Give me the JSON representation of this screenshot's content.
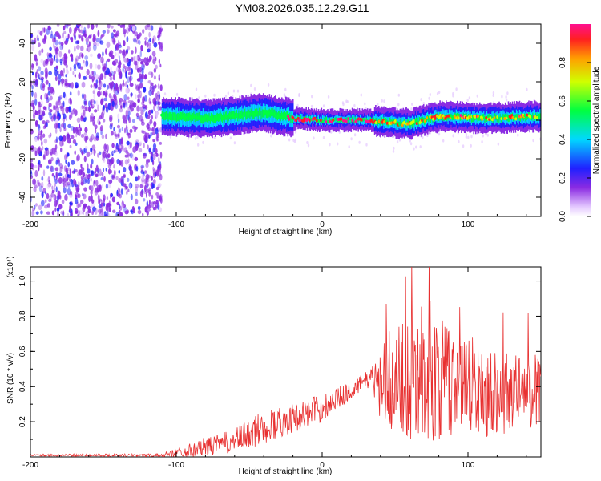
{
  "title": "YM08.2026.035.12.29.G11",
  "chart_data": [
    {
      "type": "heatmap",
      "title": "YM08.2026.035.12.29.G11",
      "xlabel": "Height of straight line (km)",
      "ylabel": "Frequency (Hz)",
      "xlim": [
        -200,
        150
      ],
      "ylim": [
        -50,
        50
      ],
      "xticks": [
        "-200",
        "-100",
        "0",
        "100"
      ],
      "yticks": [
        "-40",
        "-20",
        "0",
        "20",
        "40"
      ],
      "colorbar": {
        "label": "Normalized spectral amplitude",
        "range": [
          0,
          1
        ],
        "ticks": [
          "0.0",
          "0.2",
          "0.4",
          "0.6",
          "0.8"
        ]
      },
      "description_regions": {
        "noise_x_range": [
          -200,
          -110
        ],
        "signal_band_center_hz": [
          [
            -110,
            2
          ],
          [
            -75,
            1
          ],
          [
            -40,
            4
          ],
          [
            -20,
            1
          ],
          [
            0,
            0
          ],
          [
            30,
            0
          ],
          [
            60,
            -2
          ],
          [
            80,
            2
          ],
          [
            110,
            1
          ],
          [
            150,
            2
          ]
        ]
      }
    },
    {
      "type": "line",
      "xlabel": "Height of straight line (km)",
      "ylabel": "SNR (10 * v/v)",
      "yscale_label": "(x10⁴)",
      "xlim": [
        -200,
        150
      ],
      "ylim": [
        0,
        1.08
      ],
      "xticks": [
        "-200",
        "-100",
        "0",
        "100"
      ],
      "yticks": [
        "0.2",
        "0.4",
        "0.6",
        "0.8",
        "1.0"
      ],
      "color": "#e83030",
      "envelope": {
        "x": [
          -200,
          -110,
          -90,
          -60,
          -40,
          -20,
          0,
          20,
          33,
          40,
          50,
          60,
          70,
          75,
          80,
          100,
          120,
          150
        ],
        "mean": [
          0.01,
          0.01,
          0.04,
          0.09,
          0.17,
          0.22,
          0.28,
          0.38,
          0.45,
          0.42,
          0.45,
          0.45,
          0.48,
          0.48,
          0.44,
          0.4,
          0.37,
          0.38
        ],
        "amplitude": [
          0.005,
          0.01,
          0.04,
          0.07,
          0.1,
          0.08,
          0.08,
          0.05,
          0.05,
          0.25,
          0.3,
          0.35,
          0.4,
          0.45,
          0.35,
          0.3,
          0.25,
          0.2
        ]
      }
    }
  ]
}
